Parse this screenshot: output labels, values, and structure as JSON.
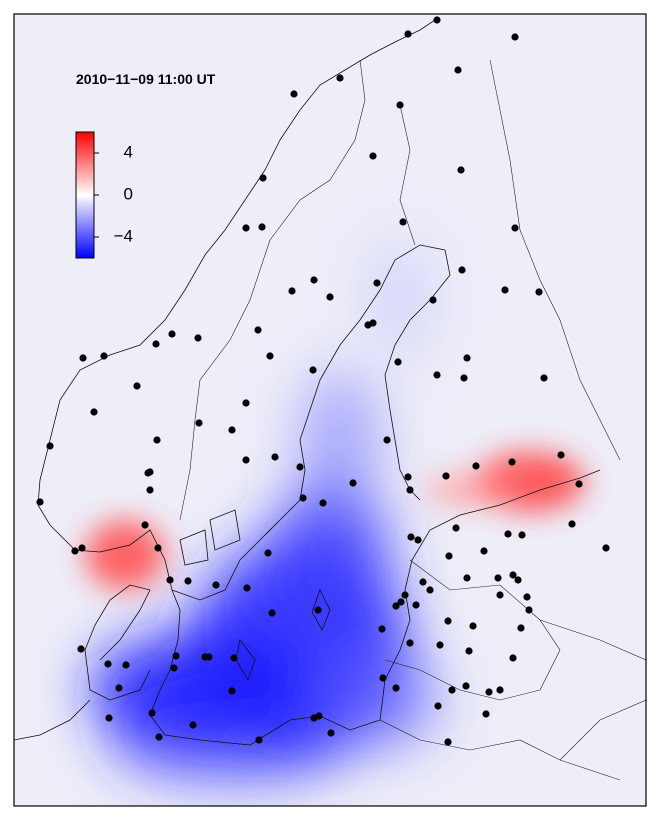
{
  "map": {
    "timestamp": "2010−11−09 11:00 UT",
    "colorbar": {
      "lim": [
        -6,
        6
      ],
      "ticks": [
        {
          "value": 4,
          "label": "4"
        },
        {
          "value": 0,
          "label": "0"
        },
        {
          "value": -4,
          "label": "−4"
        }
      ],
      "colors": [
        "#0000ff",
        "#ffffff",
        "#ff0000"
      ]
    }
  }
}
